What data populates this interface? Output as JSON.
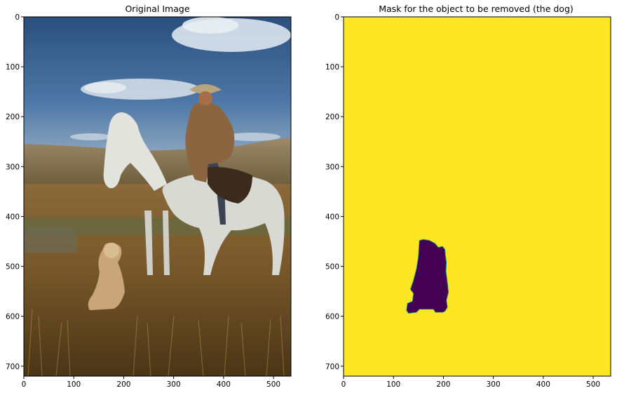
{
  "chart_data": [
    {
      "type": "image",
      "title": "Original Image",
      "image_content": "photograph: cowboy in brown jacket and hat riding a white horse, with a light-coated dog sitting in tall dry grass; blue sky with white clouds, rolling hills",
      "xlim": [
        0,
        535
      ],
      "ylim": [
        720,
        0
      ],
      "xticks": [
        0,
        100,
        200,
        300,
        400,
        500
      ],
      "yticks": [
        0,
        100,
        200,
        300,
        400,
        500,
        600,
        700
      ],
      "xticklabels": [
        "0",
        "100",
        "200",
        "300",
        "400",
        "500"
      ],
      "yticklabels": [
        "0",
        "100",
        "200",
        "300",
        "400",
        "500",
        "600",
        "700"
      ]
    },
    {
      "type": "image",
      "title": "Mask for the object to be removed (the dog)",
      "image_content": "binary mask: yellow background (1), dark purple region (0) where the dog is",
      "xlim": [
        0,
        535
      ],
      "ylim": [
        720,
        0
      ],
      "xticks": [
        0,
        100,
        200,
        300,
        400,
        500
      ],
      "yticks": [
        0,
        100,
        200,
        300,
        400,
        500,
        600,
        700
      ],
      "xticklabels": [
        "0",
        "100",
        "200",
        "300",
        "400",
        "500"
      ],
      "yticklabels": [
        "0",
        "100",
        "200",
        "300",
        "400",
        "500",
        "600",
        "700"
      ],
      "mask_region_outline": [
        [
          152,
          448
        ],
        [
          160,
          446
        ],
        [
          172,
          448
        ],
        [
          183,
          454
        ],
        [
          190,
          462
        ],
        [
          198,
          460
        ],
        [
          203,
          466
        ],
        [
          204,
          478
        ],
        [
          206,
          492
        ],
        [
          205,
          510
        ],
        [
          208,
          532
        ],
        [
          210,
          552
        ],
        [
          206,
          568
        ],
        [
          208,
          582
        ],
        [
          203,
          590
        ],
        [
          199,
          592
        ],
        [
          184,
          592
        ],
        [
          180,
          586
        ],
        [
          152,
          586
        ],
        [
          146,
          592
        ],
        [
          130,
          594
        ],
        [
          126,
          588
        ],
        [
          128,
          574
        ],
        [
          138,
          570
        ],
        [
          140,
          554
        ],
        [
          134,
          546
        ],
        [
          140,
          528
        ],
        [
          146,
          505
        ],
        [
          150,
          480
        ],
        [
          151,
          462
        ]
      ],
      "colors": {
        "background": "#fde725",
        "mask": "#440154",
        "edge": "#21918c"
      }
    }
  ]
}
